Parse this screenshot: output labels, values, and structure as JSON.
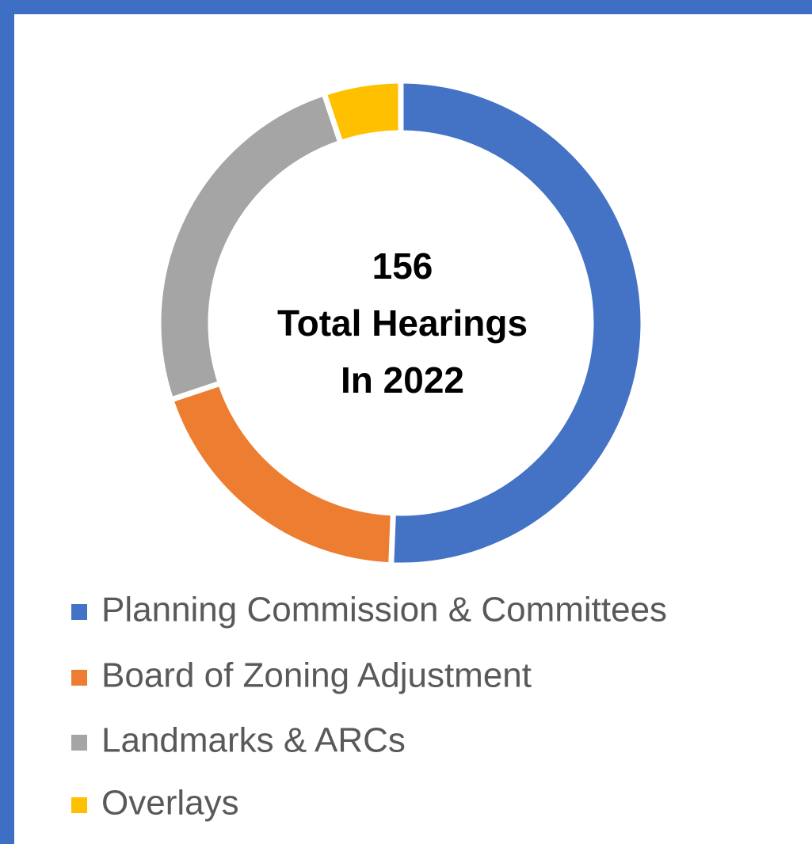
{
  "chart_data": {
    "type": "donut",
    "center_text": [
      "156",
      "Total Hearings",
      "In 2022"
    ],
    "categories": [
      "Planning Commission & Committees",
      "Board of Zoning Adjustment",
      "Landmarks & ARCs",
      "Overlays"
    ],
    "values": [
      79,
      30,
      39,
      8
    ],
    "colors": [
      "#4472c4",
      "#ed7d31",
      "#a5a5a5",
      "#ffc000"
    ],
    "legend": "bottom"
  }
}
